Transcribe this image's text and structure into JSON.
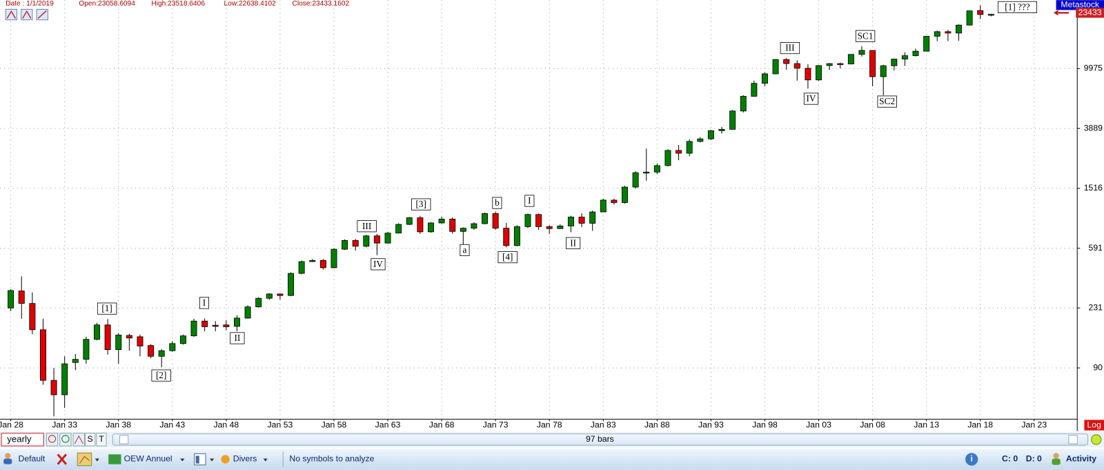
{
  "header": {
    "date": "Date : 1/1/2019",
    "open": "Open:23058.6094",
    "high": "High:23518.6406",
    "low": "Low:22638.4102",
    "close": "Close:23433.1602"
  },
  "chart_data": {
    "type": "candlestick",
    "name": "Metastock",
    "last_price_label": "23433",
    "scale_label": "Log",
    "log_scale": true,
    "grid": true,
    "up_color": "#008000",
    "down_color": "#e00000",
    "xlim": [
      -1,
      99
    ],
    "xticks": [
      {
        "value": 0,
        "label": "Jan 28"
      },
      {
        "value": 5,
        "label": "Jan 33"
      },
      {
        "value": 10,
        "label": "Jan 38"
      },
      {
        "value": 15,
        "label": "Jan 43"
      },
      {
        "value": 20,
        "label": "Jan 48"
      },
      {
        "value": 25,
        "label": "Jan 53"
      },
      {
        "value": 30,
        "label": "Jan 58"
      },
      {
        "value": 35,
        "label": "Jan 63"
      },
      {
        "value": 40,
        "label": "Jan 68"
      },
      {
        "value": 45,
        "label": "Jan 73"
      },
      {
        "value": 50,
        "label": "Jan 78"
      },
      {
        "value": 55,
        "label": "Jan 83"
      },
      {
        "value": 60,
        "label": "Jan 88"
      },
      {
        "value": 65,
        "label": "Jan 93"
      },
      {
        "value": 70,
        "label": "Jan 98"
      },
      {
        "value": 75,
        "label": "Jan 03"
      },
      {
        "value": 80,
        "label": "Jan 08"
      },
      {
        "value": 85,
        "label": "Jan 13"
      },
      {
        "value": 90,
        "label": "Jan 18"
      },
      {
        "value": 95,
        "label": "Jan 23"
      }
    ],
    "ylim": [
      40.2,
      29250
    ],
    "yticks": [
      90,
      231,
      591,
      1516,
      3889,
      9975
    ],
    "open": [
      231,
      302,
      248,
      164,
      74,
      59,
      98,
      103,
      141,
      177,
      120,
      150,
      147,
      128,
      108,
      118,
      132,
      149,
      188,
      176,
      177,
      173,
      197,
      235,
      269,
      288,
      281,
      398,
      479,
      488,
      435,
      582,
      668,
      610,
      718,
      641,
      750,
      860,
      955,
      765,
      880,
      935,
      770,
      810,
      870,
      1020,
      810,
      616,
      830,
      1005,
      830,
      805,
      839,
      965,
      875,
      1046,
      1260,
      1212,
      1547,
      1938,
      1958,
      2168,
      2753,
      2633,
      3169,
      3301,
      3754,
      3834,
      5117,
      6448,
      7908,
      9181,
      11497,
      10787,
      10021,
      8341,
      10453,
      10783,
      10717,
      12463,
      13264,
      8776,
      10428,
      11577,
      12217,
      13104,
      16576,
      17823,
      17425,
      19762,
      24824,
      23058.6094
    ],
    "high": [
      310,
      380,
      295,
      195,
      90,
      108,
      112,
      147,
      183,
      194,
      156,
      154,
      152,
      131,
      121,
      137,
      152,
      195,
      196,
      188,
      191,
      206,
      241,
      274,
      291,
      291,
      405,
      487,
      499,
      499,
      591,
      680,
      685,
      730,
      740,
      765,
      875,
      965,
      985,
      890,
      970,
      960,
      820,
      890,
      1036,
      1051,
      880,
      850,
      1020,
      1020,
      850,
      860,
      985,
      1024,
      1070,
      1287,
      1287,
      1578,
      1990,
      2830,
      2240,
      2800,
      3000,
      3280,
      3400,
      3800,
      3980,
      5200,
      6560,
      8250,
      9400,
      11570,
      11750,
      11350,
      10670,
      10550,
      10870,
      10940,
      12510,
      14198,
      13280,
      10580,
      11585,
      12876,
      13661,
      16588,
      18103,
      18351,
      19987,
      24876,
      26951,
      23518.6406
    ],
    "low": [
      220,
      195,
      153,
      69,
      42,
      48,
      87,
      96,
      139,
      111,
      96,
      118,
      108,
      105,
      91,
      116,
      130,
      147,
      160,
      160,
      163,
      160,
      195,
      233,
      262,
      263,
      278,
      393,
      475,
      422,
      431,
      575,
      569,
      598,
      530,
      635,
      745,
      850,
      740,
      755,
      870,
      745,
      610,
      790,
      860,
      790,
      600,
      610,
      810,
      790,
      742,
      800,
      760,
      825,
      777,
      1046,
      1176,
      1190,
      1510,
      1710,
      1900,
      2140,
      2360,
      2510,
      3120,
      3240,
      3590,
      3830,
      5000,
      6390,
      7540,
      9120,
      9800,
      8240,
      7280,
      8200,
      9750,
      10000,
      10660,
      12050,
      7552,
      6547,
      9686,
      10404,
      12035,
      13104,
      15340,
      15370,
      15450,
      19677,
      21712,
      22638.4102
    ],
    "close": [
      304,
      248,
      164,
      74,
      59,
      96,
      103,
      141,
      177,
      120,
      151,
      144,
      127,
      108,
      118,
      132,
      149,
      188,
      172,
      173,
      172,
      197,
      235,
      269,
      288,
      281,
      398,
      479,
      488,
      435,
      582,
      668,
      610,
      718,
      641,
      750,
      860,
      955,
      765,
      880,
      935,
      770,
      810,
      870,
      1020,
      810,
      616,
      830,
      1005,
      830,
      805,
      839,
      965,
      875,
      1046,
      1260,
      1212,
      1547,
      1938,
      1958,
      2168,
      2753,
      2633,
      3169,
      3301,
      3754,
      3834,
      5117,
      6448,
      7908,
      9181,
      11497,
      10787,
      10021,
      8341,
      10453,
      10783,
      10717,
      12463,
      13264,
      8776,
      10428,
      11577,
      12217,
      13104,
      16576,
      17823,
      17425,
      19762,
      24719,
      23327,
      23433.1602
    ],
    "annotations": [
      "[1]",
      "[2]",
      "I",
      "II",
      "III",
      "IV",
      "[3]",
      "a",
      "b",
      "[4]",
      "I",
      "II",
      "III",
      "IV",
      "SC1",
      "SC2",
      "[1] ???"
    ]
  },
  "bottom_bar": {
    "period": "yearly",
    "buttons": [
      "S",
      "T"
    ],
    "bar_count": "97 bars"
  },
  "toolbar": {
    "layout": "Default",
    "template": "OEW Annuel",
    "menu": "Divers",
    "status": "No symbols to analyze",
    "c_count": "C: 0",
    "d_count": "D: 0",
    "activity": "Activity"
  }
}
